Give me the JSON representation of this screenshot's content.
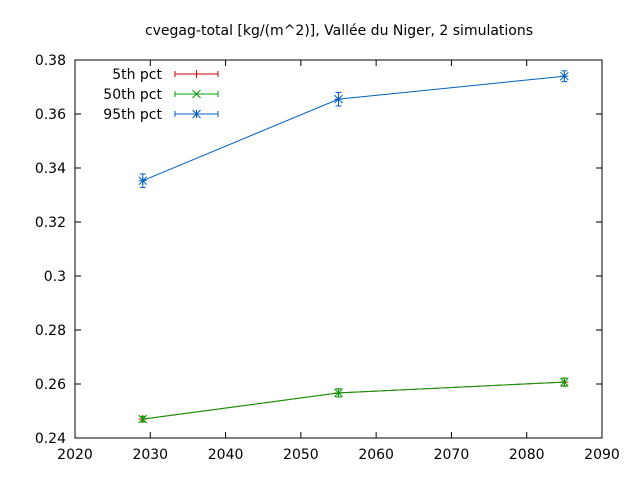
{
  "chart_data": {
    "type": "line",
    "title": "cvegag-total [kg/(m^2)], Vallée du Niger, 2 simulations",
    "xlabel": "",
    "ylabel": "",
    "xlim": [
      2020,
      2090
    ],
    "ylim": [
      0.24,
      0.38
    ],
    "xticks": [
      2020,
      2030,
      2040,
      2050,
      2060,
      2070,
      2080,
      2090
    ],
    "yticks": [
      0.24,
      0.26,
      0.28,
      0.3,
      0.32,
      0.34,
      0.36,
      0.38
    ],
    "xtick_labels": [
      "2020",
      "2030",
      "2040",
      "2050",
      "2060",
      "2070",
      "2080",
      "2090"
    ],
    "ytick_labels": [
      "0.24",
      "0.26",
      "0.28",
      "0.3",
      "0.32",
      "0.34",
      "0.36",
      "0.38"
    ],
    "grid": false,
    "legend_position": "top-left",
    "x": [
      2029,
      2055,
      2085
    ],
    "series": [
      {
        "name": "5th pct",
        "color": "#cc0000",
        "marker": "plus",
        "values": [
          0.247,
          0.2567,
          0.2607
        ],
        "err": [
          0.001,
          0.0015,
          0.0015
        ]
      },
      {
        "name": "50th pct",
        "color": "#00a000",
        "marker": "cross",
        "values": [
          0.247,
          0.2567,
          0.2607
        ],
        "err": [
          0.001,
          0.0015,
          0.0015
        ]
      },
      {
        "name": "95th pct",
        "color": "#0060c0",
        "marker": "star",
        "values": [
          0.3353,
          0.3655,
          0.374
        ],
        "err": [
          0.0025,
          0.0025,
          0.002
        ]
      }
    ]
  }
}
